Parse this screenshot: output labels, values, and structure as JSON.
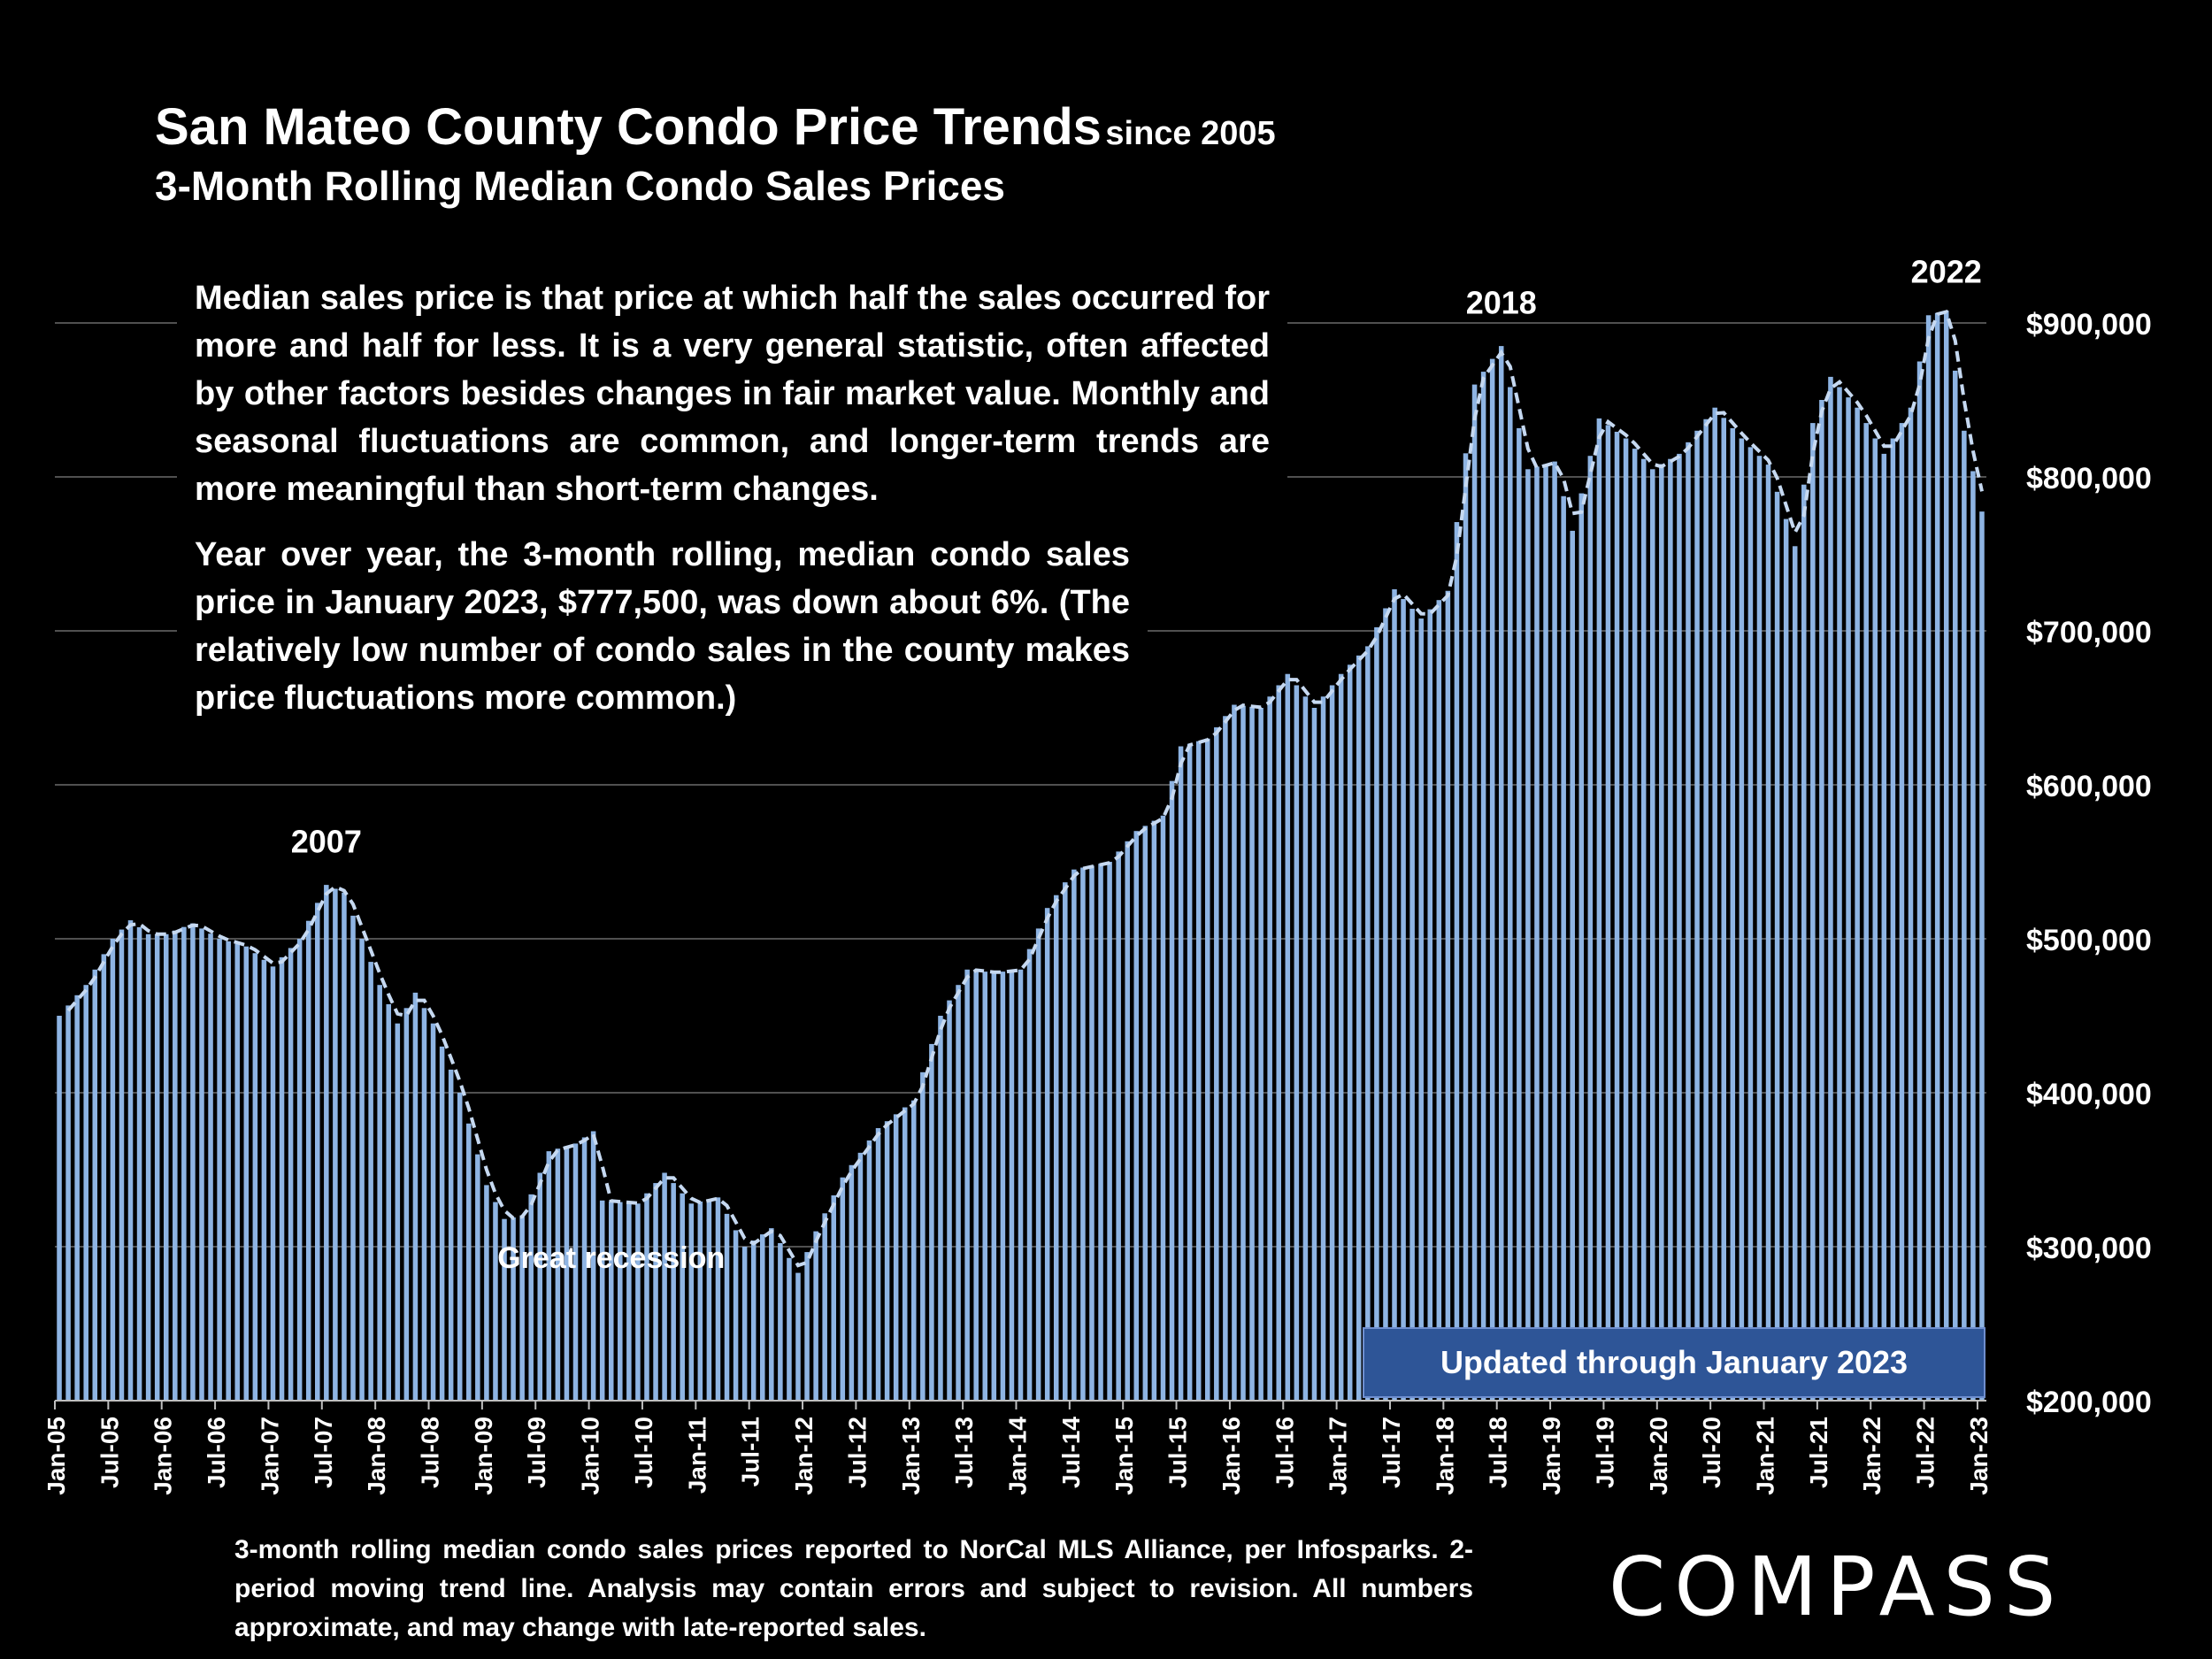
{
  "header": {
    "title": "San Mateo County Condo Price Trends",
    "title_suffix": "since 2005",
    "subtitle": "3-Month Rolling Median Condo Sales Prices"
  },
  "notes": {
    "definition": "Median sales price is that price at which half the sales occurred for more and half for less. It is a very general statistic, often affected by other factors besides changes in fair market value. Monthly and seasonal fluctuations are common, and longer-term trends are more meaningful than short-term changes.",
    "yoy": "Year over year, the 3-month rolling, median condo sales price in January 2023, $777,500, was down about 6%. (The relatively low number of condo sales in the county makes price fluctuations more common.)"
  },
  "badge": "Updated through January 2023",
  "footer": "3-month rolling median condo sales prices reported to NorCal MLS Alliance, per Infosparks. 2-period moving trend line. Analysis may contain errors and subject to revision. All numbers approximate, and may change with late-reported sales.",
  "logo": "COMPASS",
  "colors": {
    "bar": "#8eb4e3",
    "trend": "#c6d9f1",
    "grid": "#6b6b6b",
    "badge": "#2e5597"
  },
  "chart_data": {
    "type": "bar",
    "title": "San Mateo County Condo Price Trends since 2005",
    "subtitle": "3-Month Rolling Median Condo Sales Prices",
    "ylim": [
      200000,
      900000
    ],
    "y_ticks": [
      "$200,000",
      "$300,000",
      "$400,000",
      "$500,000",
      "$600,000",
      "$700,000",
      "$800,000",
      "$900,000"
    ],
    "x_tick_labels": [
      "Jan-05",
      "Jul-05",
      "Jan-06",
      "Jul-06",
      "Jan-07",
      "Jul-07",
      "Jan-08",
      "Jul-08",
      "Jan-09",
      "Jul-09",
      "Jan-10",
      "Jul-10",
      "Jan-11",
      "Jul-11",
      "Jan-12",
      "Jul-12",
      "Jan-13",
      "Jul-13",
      "Jan-14",
      "Jul-14",
      "Jan-15",
      "Jul-15",
      "Jan-16",
      "Jul-16",
      "Jan-17",
      "Jul-17",
      "Jan-18",
      "Jul-18",
      "Jan-19",
      "Jul-19",
      "Jan-20",
      "Jul-20",
      "Jan-21",
      "Jul-21",
      "Jan-22",
      "Jul-22",
      "Jan-23"
    ],
    "x_start": "2005-01",
    "x_end": "2023-01",
    "trend_line": "2-period moving average (dashed)",
    "anchors": [
      [
        "2005-01",
        450000
      ],
      [
        "2005-04",
        470000
      ],
      [
        "2005-07",
        500000
      ],
      [
        "2005-09",
        512000
      ],
      [
        "2005-11",
        503000
      ],
      [
        "2006-01",
        503000
      ],
      [
        "2006-04",
        510000
      ],
      [
        "2006-07",
        500000
      ],
      [
        "2006-10",
        495000
      ],
      [
        "2007-01",
        482000
      ],
      [
        "2007-04",
        500000
      ],
      [
        "2007-07",
        535000
      ],
      [
        "2007-09",
        530000
      ],
      [
        "2008-01",
        470000
      ],
      [
        "2008-03",
        445000
      ],
      [
        "2008-05",
        465000
      ],
      [
        "2008-07",
        445000
      ],
      [
        "2008-10",
        400000
      ],
      [
        "2009-01",
        340000
      ],
      [
        "2009-03",
        318000
      ],
      [
        "2009-05",
        320000
      ],
      [
        "2009-08",
        362000
      ],
      [
        "2009-11",
        367000
      ],
      [
        "2010-01",
        375000
      ],
      [
        "2010-02",
        330000
      ],
      [
        "2010-06",
        328000
      ],
      [
        "2010-09",
        348000
      ],
      [
        "2010-12",
        328000
      ],
      [
        "2011-03",
        332000
      ],
      [
        "2011-06",
        300000
      ],
      [
        "2011-09",
        312000
      ],
      [
        "2011-12",
        283000
      ],
      [
        "2012-02",
        310000
      ],
      [
        "2012-05",
        345000
      ],
      [
        "2012-09",
        377000
      ],
      [
        "2013-01",
        395000
      ],
      [
        "2013-04",
        450000
      ],
      [
        "2013-07",
        480000
      ],
      [
        "2013-10",
        478000
      ],
      [
        "2014-01",
        480000
      ],
      [
        "2014-04",
        520000
      ],
      [
        "2014-07",
        545000
      ],
      [
        "2014-11",
        550000
      ],
      [
        "2015-02",
        570000
      ],
      [
        "2015-05",
        580000
      ],
      [
        "2015-07",
        625000
      ],
      [
        "2015-10",
        630000
      ],
      [
        "2016-01",
        652000
      ],
      [
        "2016-04",
        650000
      ],
      [
        "2016-07",
        672000
      ],
      [
        "2016-10",
        650000
      ],
      [
        "2017-01",
        672000
      ],
      [
        "2017-04",
        690000
      ],
      [
        "2017-07",
        727000
      ],
      [
        "2017-10",
        708000
      ],
      [
        "2018-01",
        726000
      ],
      [
        "2018-04",
        860000
      ],
      [
        "2018-07",
        885000
      ],
      [
        "2018-10",
        805000
      ],
      [
        "2019-01",
        810000
      ],
      [
        "2019-03",
        765000
      ],
      [
        "2019-06",
        838000
      ],
      [
        "2019-09",
        825000
      ],
      [
        "2019-12",
        805000
      ],
      [
        "2020-03",
        815000
      ],
      [
        "2020-07",
        845000
      ],
      [
        "2020-10",
        825000
      ],
      [
        "2021-01",
        808000
      ],
      [
        "2021-04",
        755000
      ],
      [
        "2021-06",
        835000
      ],
      [
        "2021-08",
        865000
      ],
      [
        "2021-11",
        845000
      ],
      [
        "2022-02",
        815000
      ],
      [
        "2022-05",
        845000
      ],
      [
        "2022-07",
        905000
      ],
      [
        "2022-09",
        908000
      ],
      [
        "2022-11",
        830000
      ],
      [
        "2023-01",
        777500
      ]
    ],
    "annotations": [
      {
        "text": "2007",
        "x": "2007-07",
        "y": 540000
      },
      {
        "text": "2018",
        "x": "2018-07",
        "y": 890000
      },
      {
        "text": "2022",
        "x": "2022-09",
        "y": 910000
      },
      {
        "text": "Great recession",
        "x": "2010-03",
        "y": 270000
      }
    ]
  }
}
